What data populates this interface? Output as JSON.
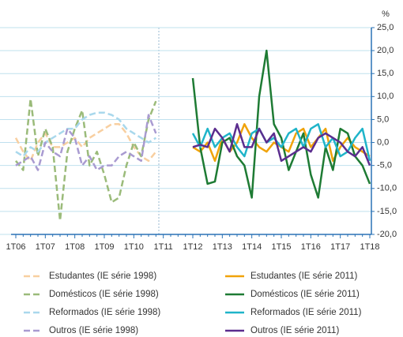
{
  "chart_data": {
    "type": "line",
    "y_unit": "%",
    "categories": [
      "1T06",
      null,
      null,
      null,
      "1T07",
      null,
      null,
      null,
      "1T08",
      null,
      null,
      null,
      "1T09",
      null,
      null,
      null,
      "1T10",
      null,
      null,
      null,
      "1T11",
      null,
      null,
      null,
      "1T12",
      null,
      null,
      null,
      "1T13",
      null,
      null,
      null,
      "1T14",
      null,
      null,
      null,
      "1T15",
      null,
      null,
      null,
      "1T16",
      null,
      null,
      null,
      "1T17",
      null,
      null,
      null,
      "1T18"
    ],
    "ylim": [
      -20,
      25
    ],
    "yticks": [
      {
        "value": -20,
        "label": "-20,0"
      },
      {
        "value": -15,
        "label": "-15,0"
      },
      {
        "value": -10,
        "label": "-10,0"
      },
      {
        "value": -5,
        "label": "-5,0"
      },
      {
        "value": 0,
        "label": "0,0"
      },
      {
        "value": 5,
        "label": "5,0"
      },
      {
        "value": 10,
        "label": "10,0"
      },
      {
        "value": 15,
        "label": "15,0"
      },
      {
        "value": 20,
        "label": "20,0"
      },
      {
        "value": 25,
        "label": "25,0"
      }
    ],
    "grid": true,
    "series": [
      {
        "name": "Estudantes (IE série 1998)",
        "color": "#f8cfa0",
        "dashed": true,
        "values": [
          1,
          -2,
          -4,
          0,
          2,
          -1,
          -1,
          0,
          1,
          -1,
          1,
          2,
          3,
          4,
          4,
          2,
          -1,
          -3,
          -4,
          -2,
          null,
          null,
          null,
          null,
          null,
          null,
          null,
          null,
          null,
          null,
          null,
          null,
          null,
          null,
          null,
          null,
          null,
          null,
          null,
          null,
          null,
          null,
          null,
          null,
          null,
          null,
          null,
          null,
          null
        ]
      },
      {
        "name": "Estudantes (IE série 2011)",
        "color": "#f0a30a",
        "dashed": false,
        "values": [
          null,
          null,
          null,
          null,
          null,
          null,
          null,
          null,
          null,
          null,
          null,
          null,
          null,
          null,
          null,
          null,
          null,
          null,
          null,
          null,
          null,
          null,
          null,
          null,
          -1,
          -2,
          0,
          -4,
          1,
          -2,
          0,
          4,
          1,
          -1,
          -2,
          0,
          -1,
          -2,
          2,
          3,
          -1,
          1,
          3,
          -4,
          -1,
          1,
          -1,
          -2,
          -3
        ]
      },
      {
        "name": "Domésticos (IE série 1998)",
        "color": "#9bbb7a",
        "dashed": true,
        "values": [
          -4,
          -6,
          9.5,
          -3,
          3,
          -1,
          -17,
          -2,
          3,
          7,
          -5,
          -2,
          -7,
          -13,
          -12,
          -5,
          0,
          -3,
          5,
          9,
          null,
          null,
          null,
          null,
          null,
          null,
          null,
          null,
          null,
          null,
          null,
          null,
          null,
          null,
          null,
          null,
          null,
          null,
          null,
          null,
          null,
          null,
          null,
          null,
          null,
          null,
          null,
          null,
          null
        ]
      },
      {
        "name": "Domésticos  (IE série 2011)",
        "color": "#1e7b34",
        "dashed": false,
        "values": [
          null,
          null,
          null,
          null,
          null,
          null,
          null,
          null,
          null,
          null,
          null,
          null,
          null,
          null,
          null,
          null,
          null,
          null,
          null,
          null,
          null,
          null,
          null,
          null,
          14,
          -1,
          -9,
          -8.5,
          0,
          1,
          -3,
          -5,
          -12,
          10,
          20,
          4,
          1,
          -6,
          -2,
          2,
          -7,
          -12,
          -1,
          -6,
          3,
          2,
          -3,
          -5,
          -9
        ]
      },
      {
        "name": "Reformados (IE série 1998)",
        "color": "#a9d8ec",
        "dashed": true,
        "values": [
          -2,
          -3,
          -1,
          -2,
          0,
          1,
          2,
          3,
          3,
          5,
          6,
          6.5,
          6.5,
          6,
          5,
          3,
          2,
          1,
          0,
          1,
          null,
          null,
          null,
          null,
          null,
          null,
          null,
          null,
          null,
          null,
          null,
          null,
          null,
          null,
          null,
          null,
          null,
          null,
          null,
          null,
          null,
          null,
          null,
          null,
          null,
          null,
          null,
          null,
          null
        ]
      },
      {
        "name": "Reformados (IE série 2011)",
        "color": "#1fb4c9",
        "dashed": false,
        "values": [
          null,
          null,
          null,
          null,
          null,
          null,
          null,
          null,
          null,
          null,
          null,
          null,
          null,
          null,
          null,
          null,
          null,
          null,
          null,
          null,
          null,
          null,
          null,
          null,
          2,
          -1,
          3,
          -1,
          1,
          2,
          -1,
          -3,
          2,
          3,
          0,
          1,
          -1,
          2,
          3,
          -1,
          3,
          4,
          -1,
          1,
          -3,
          -2,
          1,
          3,
          -4
        ]
      },
      {
        "name": "Outros (IE série 1998)",
        "color": "#a99bd1",
        "dashed": true,
        "values": [
          -5,
          -4,
          -3,
          -6,
          0,
          -2,
          -3,
          3,
          1,
          -5,
          -3,
          -6,
          -5,
          -5,
          -3,
          -2,
          -3,
          -4,
          6,
          2,
          null,
          null,
          null,
          null,
          null,
          null,
          null,
          null,
          null,
          null,
          null,
          null,
          null,
          null,
          null,
          null,
          null,
          null,
          null,
          null,
          null,
          null,
          null,
          null,
          null,
          null,
          null,
          null,
          null
        ]
      },
      {
        "name": "Outros (IE série 2011)",
        "color": "#5b2d8e",
        "dashed": false,
        "values": [
          null,
          null,
          null,
          null,
          null,
          null,
          null,
          null,
          null,
          null,
          null,
          null,
          null,
          null,
          null,
          null,
          null,
          null,
          null,
          null,
          null,
          null,
          null,
          null,
          -1,
          -0.5,
          -1,
          3,
          1,
          -2,
          4,
          -1,
          -1,
          3,
          0,
          2,
          -4,
          -3,
          -2,
          -1,
          -2,
          1,
          2,
          1,
          0,
          -2,
          -3,
          -1,
          -5
        ]
      }
    ]
  }
}
